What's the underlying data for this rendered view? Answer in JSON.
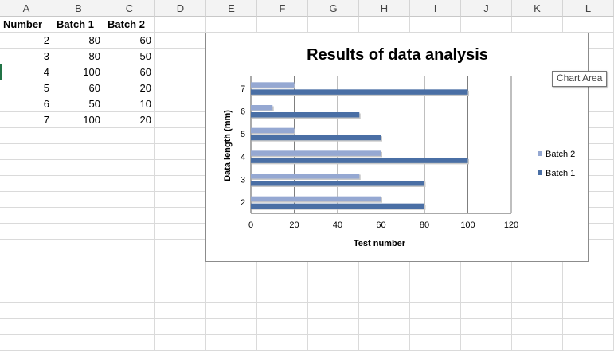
{
  "columns": [
    "A",
    "B",
    "C",
    "D",
    "E",
    "F",
    "G",
    "H",
    "I",
    "J",
    "K",
    "L"
  ],
  "table": {
    "headers": [
      "Number",
      "Batch 1",
      "Batch 2"
    ],
    "rows": [
      [
        "2",
        "80",
        "60"
      ],
      [
        "3",
        "80",
        "50"
      ],
      [
        "4",
        "100",
        "60"
      ],
      [
        "5",
        "60",
        "20"
      ],
      [
        "6",
        "50",
        "10"
      ],
      [
        "7",
        "100",
        "20"
      ]
    ]
  },
  "tooltip": "Chart Area",
  "colors": {
    "batch1": "#4a6fa5",
    "batch2": "#95a8d2",
    "grid": "#7f7f7f"
  },
  "chart_data": {
    "type": "bar",
    "orientation": "horizontal",
    "title": "Results of data analysis",
    "xlabel": "Test number",
    "ylabel": "Data length (mm)",
    "categories": [
      "2",
      "3",
      "4",
      "5",
      "6",
      "7"
    ],
    "series": [
      {
        "name": "Batch 1",
        "values": [
          80,
          80,
          100,
          60,
          50,
          100
        ]
      },
      {
        "name": "Batch 2",
        "values": [
          60,
          50,
          60,
          20,
          10,
          20
        ]
      }
    ],
    "xlim": [
      0,
      120
    ],
    "xticks": [
      "0",
      "20",
      "40",
      "60",
      "80",
      "100",
      "120"
    ],
    "legend": [
      "Batch 2",
      "Batch 1"
    ],
    "legend_position": "right",
    "grid": true
  }
}
